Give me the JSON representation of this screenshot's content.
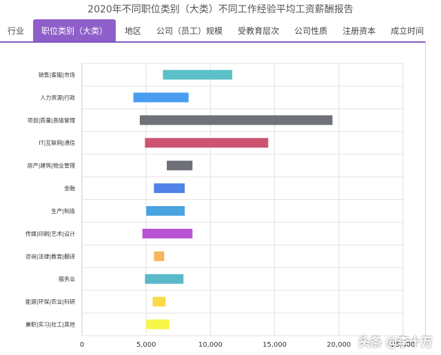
{
  "title": "2020年不同职位类别（大类）不同工作经验平均工资薪酬报告",
  "tabs": [
    {
      "label": "行业",
      "active": false
    },
    {
      "label": "职位类别（大类）",
      "active": true
    },
    {
      "label": "地区",
      "active": false
    },
    {
      "label": "公司（员工）规模",
      "active": false
    },
    {
      "label": "受教育层次",
      "active": false
    },
    {
      "label": "公司性质",
      "active": false
    },
    {
      "label": "注册资本",
      "active": false
    },
    {
      "label": "成立时间",
      "active": false
    }
  ],
  "watermark": "头条 @李十万",
  "chart_data": {
    "type": "bar",
    "orientation": "horizontal-range",
    "xlim": [
      0,
      25000
    ],
    "xticks": [
      "0",
      "5,000",
      "10,000",
      "15,000",
      "20,000",
      "25,000"
    ],
    "grid": true,
    "categories": [
      "销售|客服|市场",
      "人力资源|行政",
      "项目|质量|高级管理",
      "IT|互联网|通信",
      "房产|建筑|物业管理",
      "金融",
      "生产|制造",
      "传媒|印刷|艺术|设计",
      "咨询|法律|教育|翻译",
      "服务业",
      "能源|环保|农业|科研",
      "兼职|实习|社工|其他"
    ],
    "ranges": [
      [
        6300,
        11700
      ],
      [
        4000,
        8300
      ],
      [
        4500,
        19500
      ],
      [
        4900,
        14500
      ],
      [
        6600,
        8600
      ],
      [
        5600,
        8000
      ],
      [
        5000,
        8000
      ],
      [
        4700,
        8600
      ],
      [
        5600,
        6400
      ],
      [
        4900,
        7900
      ],
      [
        5500,
        6500
      ],
      [
        5000,
        6800
      ]
    ],
    "colors": [
      "#5bc0c7",
      "#4a9ef0",
      "#6e7177",
      "#cc5470",
      "#6e7177",
      "#5282e8",
      "#4aa4e0",
      "#b754d4",
      "#f7b45a",
      "#5bb8c9",
      "#f7da45",
      "#f7f545"
    ]
  }
}
